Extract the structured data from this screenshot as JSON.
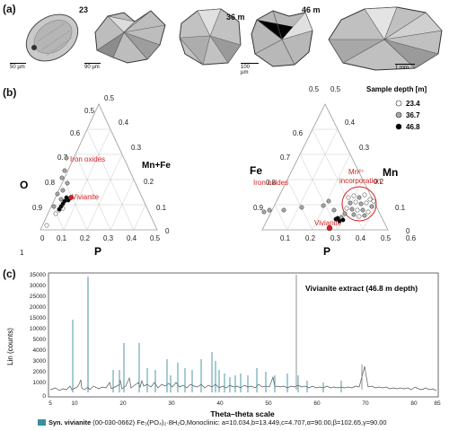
{
  "panel_a": {
    "letter": "(a)",
    "images": [
      {
        "depth_label": "23 m",
        "scale_label": "50 µm"
      },
      {
        "depth_label": "",
        "scale_label": "90 µm"
      },
      {
        "depth_label": "36 m",
        "scale_label": ""
      },
      {
        "depth_label": "",
        "scale_label": "100 µm"
      },
      {
        "depth_label": "46 m",
        "scale_label": ""
      },
      {
        "depth_label": "",
        "scale_label": "1 mm"
      }
    ]
  },
  "panel_b": {
    "letter": "(b)",
    "legend": {
      "title": "Sample depth [m]",
      "items": [
        {
          "label": "23.4",
          "color": "#ffffff"
        },
        {
          "label": "36.7",
          "color": "#a6a6a6"
        },
        {
          "label": "46.8",
          "color": "#000000"
        }
      ]
    },
    "left_ternary": {
      "axis_left": "O",
      "axis_right": "Mn+Fe",
      "axis_bottom": "P",
      "ticks_left": [
        "1",
        "0.9",
        "0.8",
        "0.7",
        "0.6",
        "0.5"
      ],
      "ticks_right": [
        "0.5",
        "0.4",
        "0.3",
        "0.2",
        "0.1",
        "0"
      ],
      "ticks_bottom": [
        "0",
        "0.1",
        "0.2",
        "0.3",
        "0.4",
        "0.5"
      ],
      "annotations": [
        "Iron oxides",
        "Vivianite"
      ]
    },
    "right_ternary": {
      "axis_left": "Fe",
      "axis_right": "Mn",
      "axis_bottom": "P",
      "ticks_left": [
        "0.9",
        "0.8",
        "0.7",
        "0.6",
        "0.5"
      ],
      "ticks_right": [
        "0.5",
        "0.4",
        "0.3",
        "0.2",
        "0.1",
        "0"
      ],
      "ticks_bottom": [
        "0.1",
        "0.2",
        "0.3",
        "0.4",
        "0.5",
        "0.6"
      ],
      "annotations": [
        "Iron oxides",
        "Vivianite",
        "Mn²⁺",
        "incorporation"
      ]
    }
  },
  "panel_c": {
    "letter": "(c)",
    "title": "Vivianite extract (46.8 m depth)",
    "xlabel": "Theta–theta scale",
    "ylabel": "Lin (counts)",
    "yticks": [
      "35000",
      "30000",
      "25000",
      "20000",
      "15000",
      "10000",
      "5000",
      "4000",
      "3000",
      "2000",
      "1000",
      "0"
    ],
    "xticks": [
      "5",
      "10",
      "20",
      "30",
      "40",
      "50",
      "60",
      "70",
      "80",
      "85"
    ],
    "caption_bold": "Syn. vivianite",
    "caption_rest": " (00-030-0662) Fe₃(PO₄)₂·8H₂O,Monoclinic: a=10.034,b=13.449,c=4.707,α=90.00,β=102.65,γ=90.00",
    "reference_color": "#3a8f9b"
  }
}
